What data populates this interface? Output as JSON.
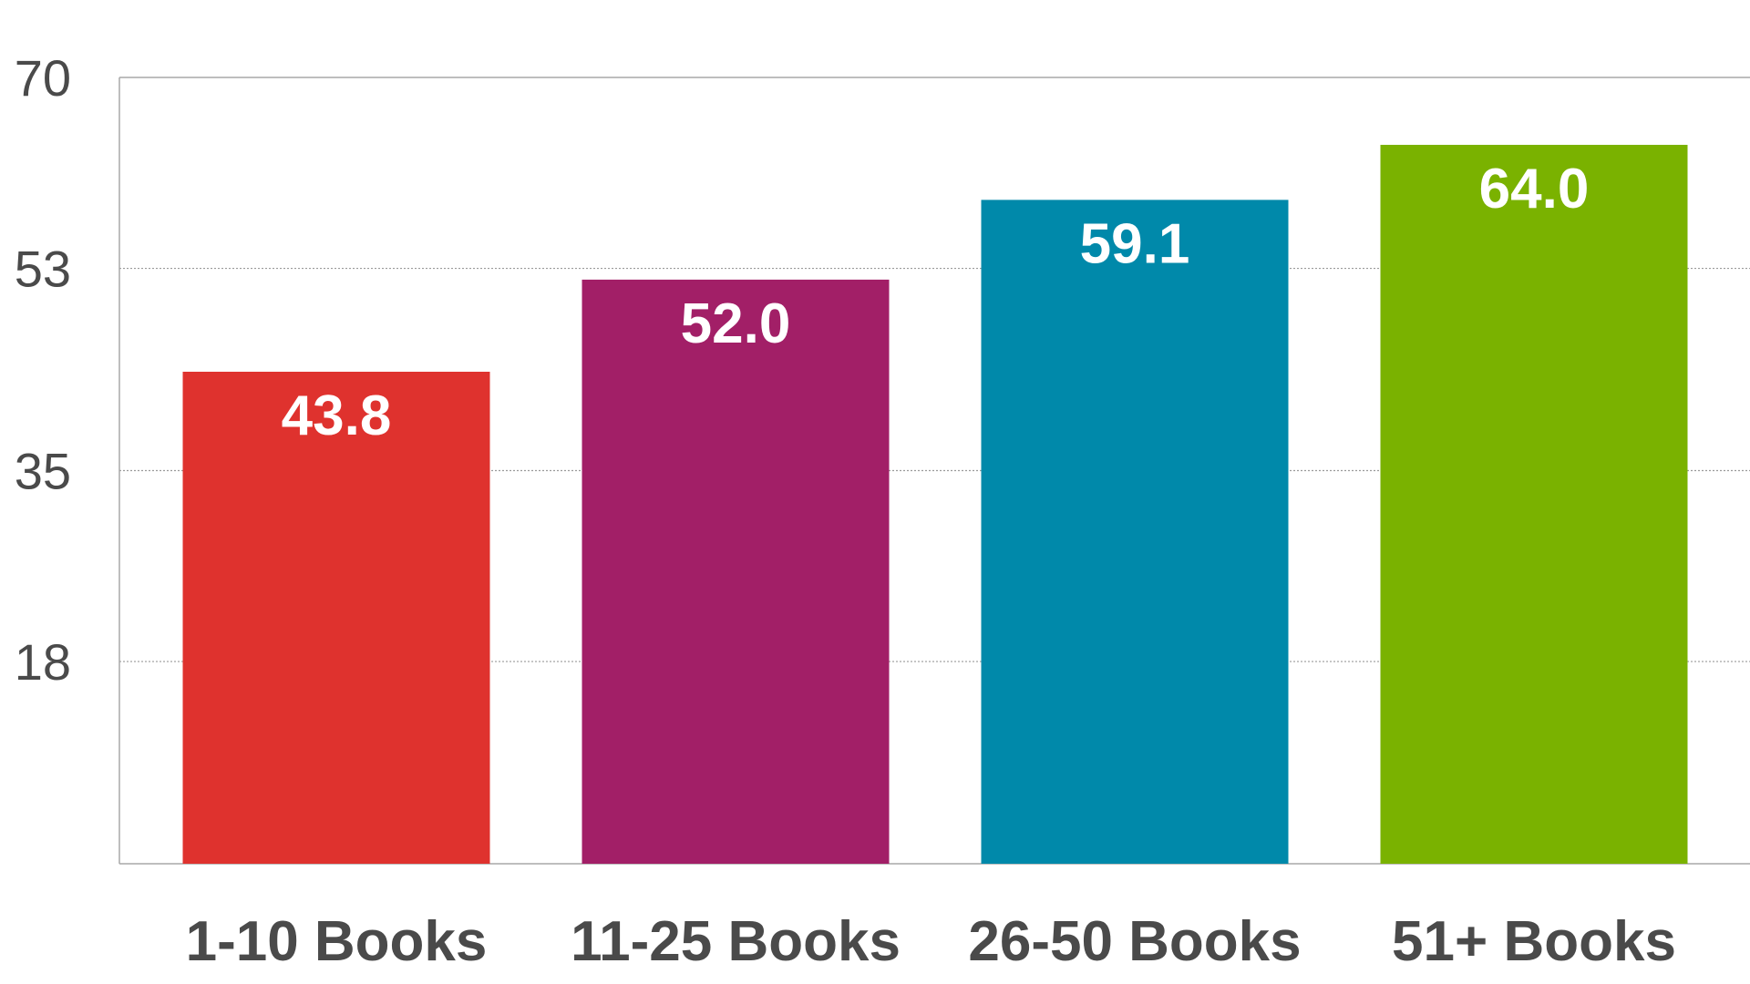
{
  "chart_data": {
    "type": "bar",
    "title": "",
    "xlabel": "",
    "ylabel": "",
    "categories": [
      "1-10 Books",
      "11-25 Books",
      "26-50 Books",
      "51+ Books"
    ],
    "values": [
      43.8,
      52.0,
      59.1,
      64.0
    ],
    "value_labels": [
      "43.8",
      "52.0",
      "59.1",
      "64.0"
    ],
    "colors": [
      "#df322e",
      "#a21f67",
      "#0089aa",
      "#7ab200"
    ],
    "ylim": [
      0,
      70
    ],
    "yticks": [
      18,
      35,
      53,
      70
    ],
    "ytick_labels": [
      "18",
      "35",
      "53",
      "70"
    ],
    "grid": true,
    "legend": "none"
  }
}
